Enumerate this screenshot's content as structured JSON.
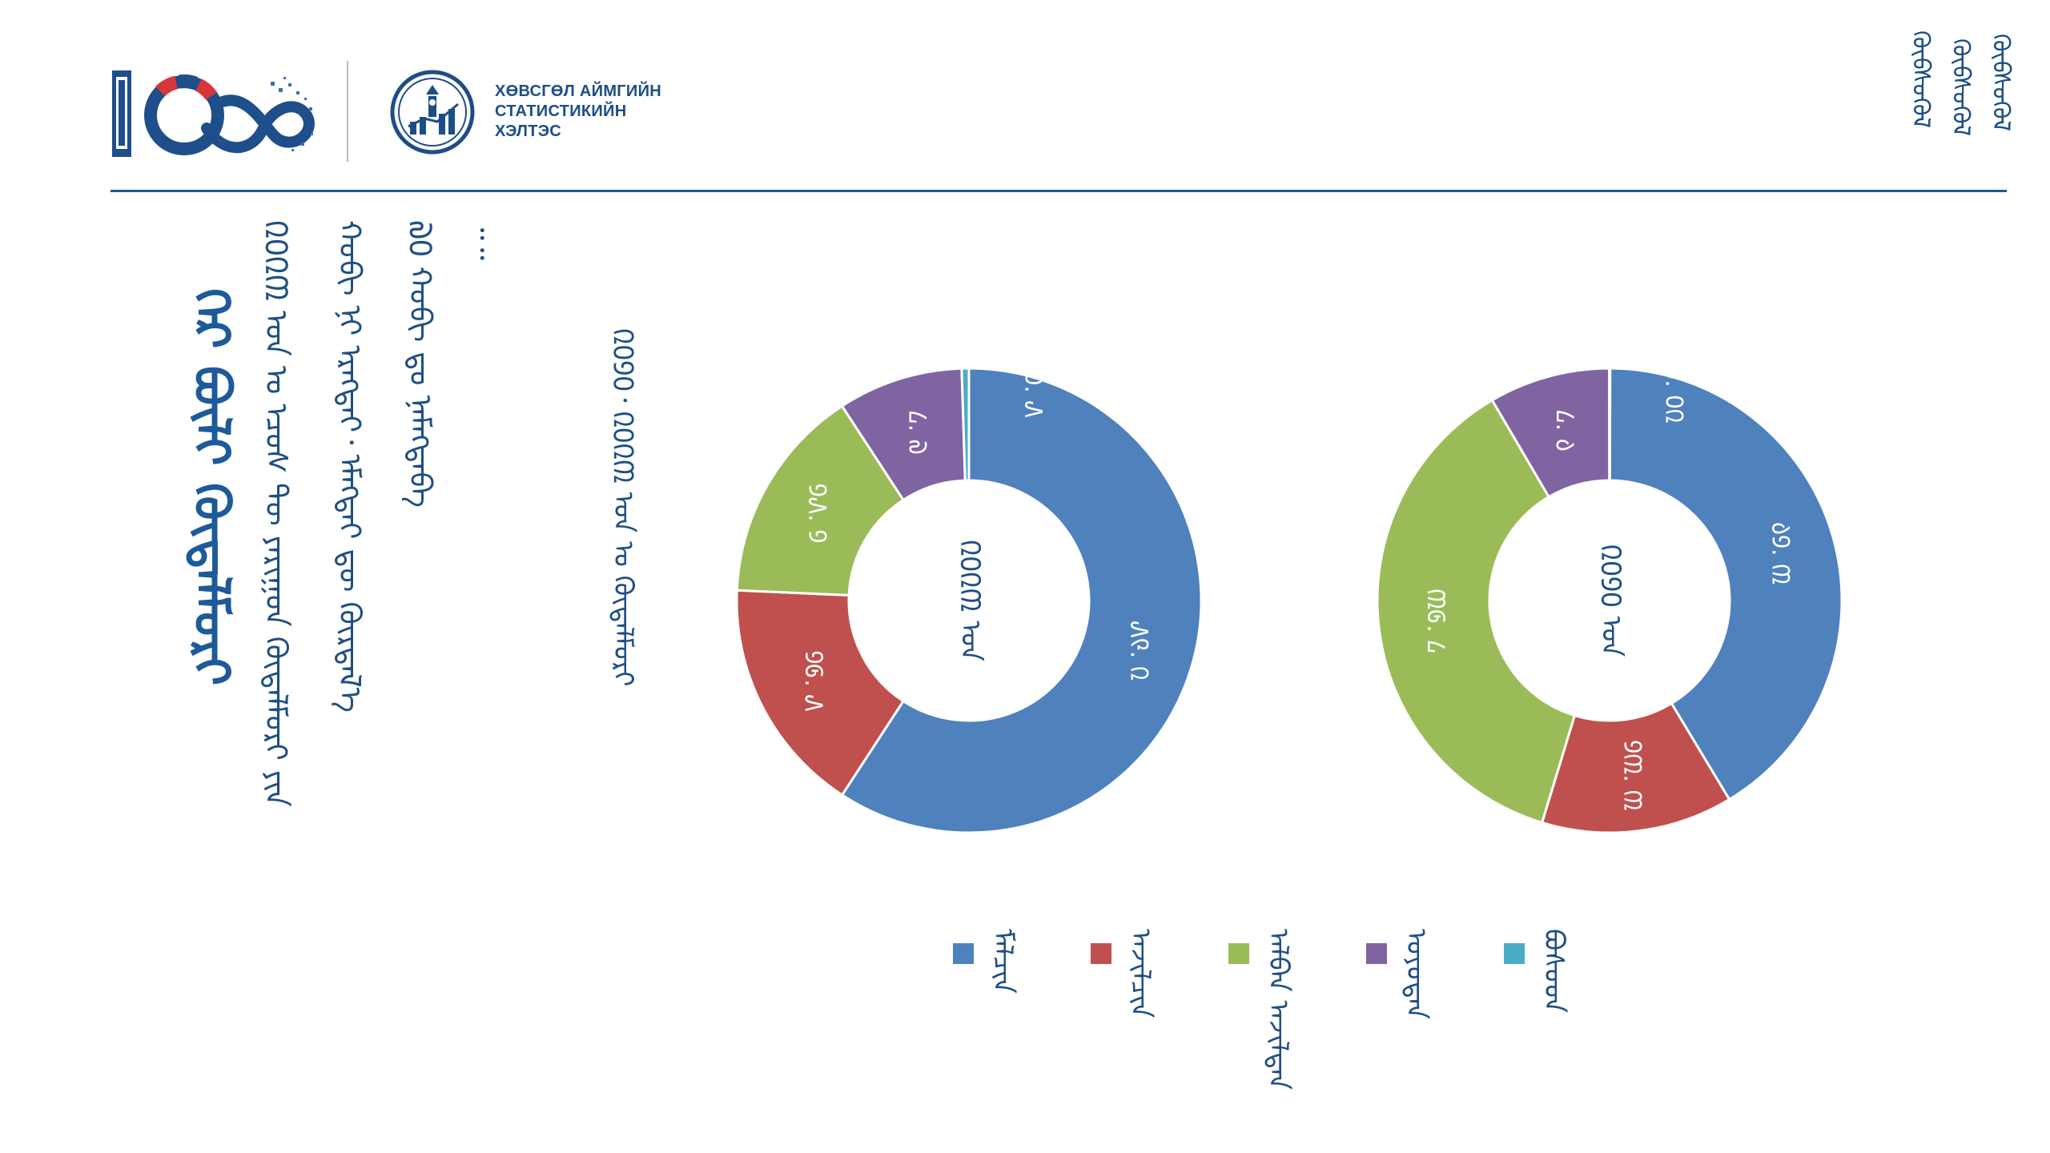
{
  "header": {
    "org_lines": [
      "ХӨВСГӨЛ АЙМГИЙН",
      "СТАТИСТИКИЙН",
      "ХЭЛТЭС"
    ],
    "logo_100_label": "100",
    "mongol_mark": "ᠬᠥᠪᠰᠦᠭᠦᠯ"
  },
  "title": "ᠭᠡᠷ ᠪᠦᠯᠢ ᠬᠥᠳᠡᠯᠮᠦᠷᠢ",
  "paragraph": [
    "᠒᠐᠒᠓ ᠣᠨ ᠤ ᠡᠴᠦᠰ ᠲᠦ ᠶᠠᠷᠢᠭᠤᠨ ᠬᠥᠳᠡᠯᠮᠦᠷᠢ ᠶᠢᠨ",
    "ᠬᠤᠪᠢ ᠨᠢ ᠡᠷᠡᠭᠲᠡᠢ᠂ ᠡᠮᠡᠭᠲᠡᠢ ᠳᠦ ᠬᠦᠷᠲᠡᠯ᠎ᠡ",
    "᠗᠐ ᠬᠤᠪᠢ ᠳᠤ ᠨᠡᠮᠡᠭᠳᠡᠪᠡ",
    "᠃᠃"
  ],
  "chart_caption": "᠒᠐᠑᠐᠂ ᠒᠐᠒᠓ ᠣᠨ ᠤ ᠬᠥᠳᠡᠯᠮᠦᠷᠢ",
  "chart_data": [
    {
      "type": "pie",
      "title": "᠒᠐᠒᠓ ᠣᠨ",
      "categories": [
        "ᠮᠠᠯᠴᠢᠨ",
        "ᠠᠵᠢᠯᠴᠢᠨ",
        "ᠠᠯᠪᠠᠨ ᠠᠵᠢᠯᠲᠠᠨ",
        "ᠣᠶᠤᠲᠠᠨ",
        "ᠪᠤᠰᠤᠳ"
      ],
      "values": [
        59.2,
        16.5,
        15.1,
        8.7,
        0.5
      ],
      "value_labels": [
        "᠕᠙. ᠒",
        "᠑᠖. ᠕",
        "᠑᠕. ᠑",
        "᠘. ᠗",
        "᠐. ᠕"
      ]
    },
    {
      "type": "pie",
      "title": "᠒᠐᠑᠐ ᠣᠨ",
      "categories": [
        "ᠮᠠᠯᠴᠢᠨ",
        "ᠠᠵᠢᠯᠴᠢᠨ",
        "ᠠᠯᠪᠠᠨ ᠠᠵᠢᠯᠲᠠᠨ",
        "ᠣᠶᠤᠲᠠᠨ",
        "ᠪᠤᠰᠤᠳ"
      ],
      "values": [
        41.3,
        13.3,
        36.8,
        8.4,
        0.02
      ],
      "value_labels": [
        "᠔᠑. ᠓",
        "᠑᠓. ᠓",
        "᠓᠖. ᠘",
        "᠘. ᠔",
        "᠐. ᠐᠒"
      ]
    }
  ],
  "legend": [
    {
      "label": "ᠮᠠᠯᠴᠢᠨ",
      "color": "#4f81bd"
    },
    {
      "label": "ᠠᠵᠢᠯᠴᠢᠨ",
      "color": "#c0504d"
    },
    {
      "label": "ᠠᠯᠪᠠᠨ ᠠᠵᠢᠯᠲᠠᠨ",
      "color": "#9bbb59"
    },
    {
      "label": "ᠣᠶᠤᠲᠠᠨ",
      "color": "#8064a2"
    },
    {
      "label": "ᠪᠤᠰᠤᠳ",
      "color": "#4bacc6"
    }
  ]
}
